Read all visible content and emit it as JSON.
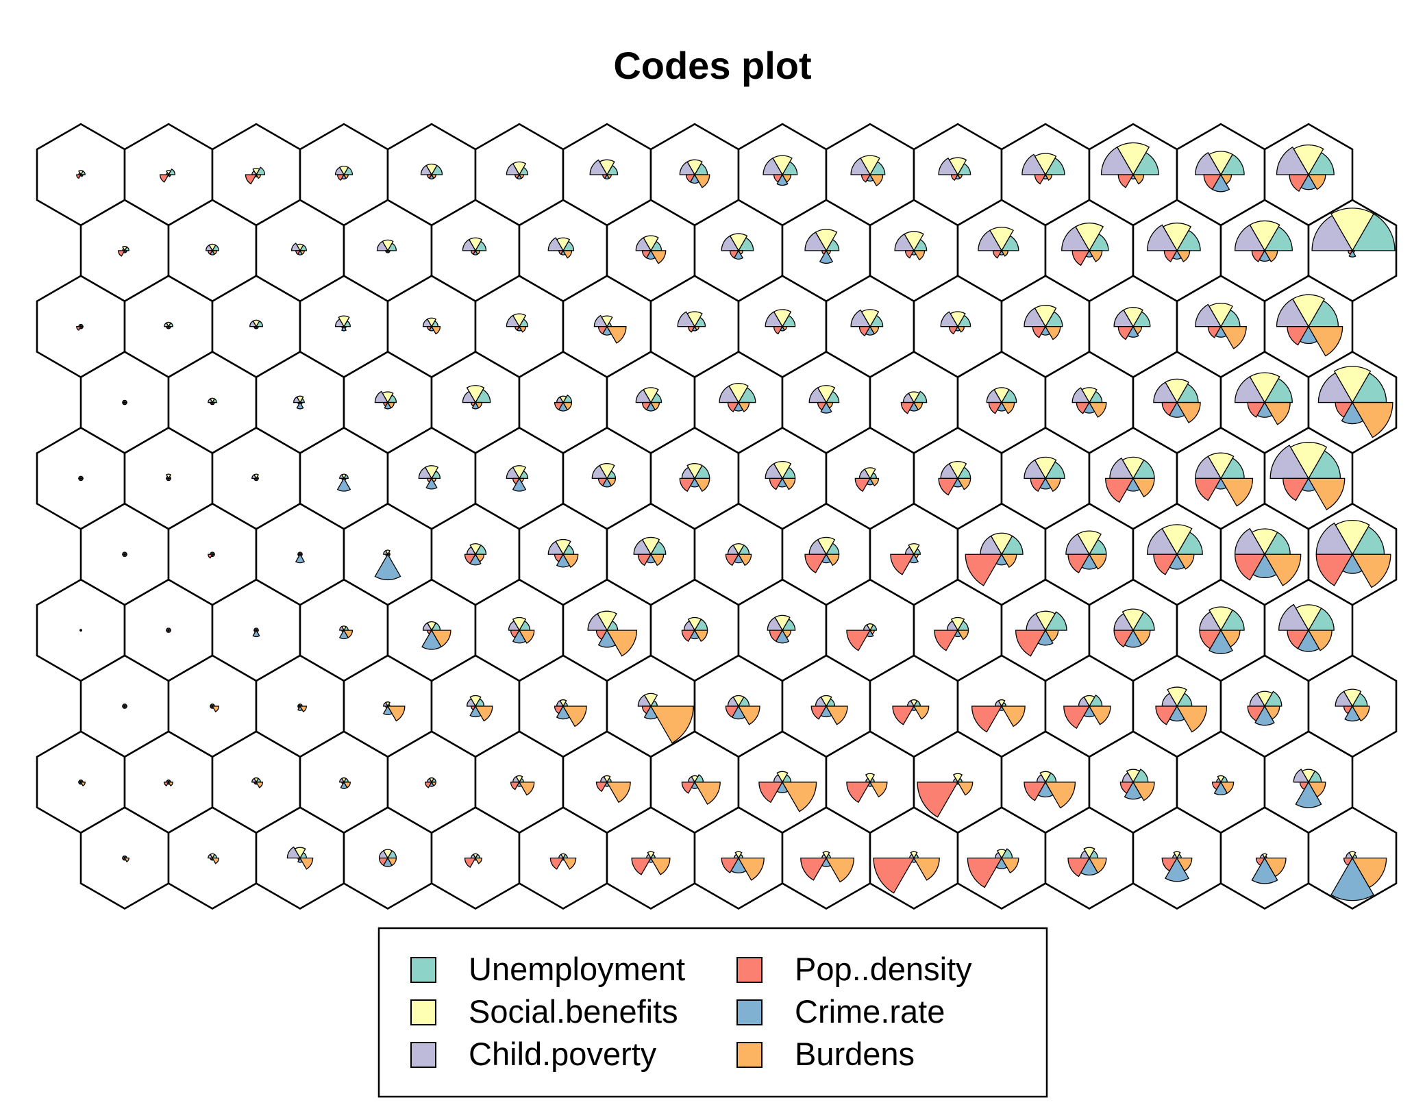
{
  "chart_data": {
    "type": "som-codes-fan",
    "title": "Codes plot",
    "grid": {
      "topology": "hexagonal",
      "rows": 10,
      "cols": 15
    },
    "variables": [
      "Unemployment",
      "Social.benefits",
      "Child.poverty",
      "Pop..density",
      "Crime.rate",
      "Burdens"
    ],
    "colors": [
      "#8dd3c7",
      "#ffffb3",
      "#bebada",
      "#fb8072",
      "#80b1d3",
      "#fdb462"
    ],
    "legend": {
      "position": "bottom",
      "entries": [
        {
          "label": "Unemployment",
          "color": "#8dd3c7"
        },
        {
          "label": "Social.benefits",
          "color": "#ffffb3"
        },
        {
          "label": "Child.poverty",
          "color": "#bebada"
        },
        {
          "label": "Pop..density",
          "color": "#fb8072"
        },
        {
          "label": "Crime.rate",
          "color": "#80b1d3"
        },
        {
          "label": "Burdens",
          "color": "#fdb462"
        }
      ]
    },
    "codes_note": "rows listed top to bottom; each cell = [Unemployment, Social.benefits, Child.poverty, Pop..density, Crime.rate, Burdens], relative scale 0-1",
    "codes": [
      [
        [
          0.1,
          0.1,
          0.05,
          0.1,
          0.03,
          0.05
        ],
        [
          0.15,
          0.1,
          0.05,
          0.2,
          0.03,
          0.05
        ],
        [
          0.2,
          0.15,
          0.1,
          0.25,
          0.05,
          0.1
        ],
        [
          0.2,
          0.2,
          0.2,
          0.15,
          0.1,
          0.1
        ],
        [
          0.25,
          0.25,
          0.25,
          0.1,
          0.1,
          0.1
        ],
        [
          0.2,
          0.3,
          0.3,
          0.1,
          0.1,
          0.1
        ],
        [
          0.25,
          0.35,
          0.4,
          0.1,
          0.1,
          0.1
        ],
        [
          0.3,
          0.35,
          0.35,
          0.2,
          0.2,
          0.35
        ],
        [
          0.35,
          0.45,
          0.45,
          0.2,
          0.25,
          0.2
        ],
        [
          0.35,
          0.45,
          0.45,
          0.2,
          0.15,
          0.3
        ],
        [
          0.3,
          0.4,
          0.45,
          0.15,
          0.1,
          0.1
        ],
        [
          0.45,
          0.5,
          0.55,
          0.25,
          0.1,
          0.15
        ],
        [
          0.6,
          0.75,
          0.75,
          0.35,
          0.1,
          0.25
        ],
        [
          0.55,
          0.55,
          0.6,
          0.4,
          0.4,
          0.25
        ],
        [
          0.6,
          0.7,
          0.75,
          0.45,
          0.35,
          0.4
        ]
      ],
      [
        [
          0.1,
          0.1,
          0.05,
          0.15,
          0.05,
          0.05
        ],
        [
          0.15,
          0.15,
          0.15,
          0.1,
          0.1,
          0.1
        ],
        [
          0.15,
          0.15,
          0.2,
          0.1,
          0.1,
          0.1
        ],
        [
          0.2,
          0.25,
          0.25,
          0.05,
          0.05,
          0.05
        ],
        [
          0.25,
          0.3,
          0.3,
          0.1,
          0.1,
          0.1
        ],
        [
          0.25,
          0.3,
          0.35,
          0.1,
          0.1,
          0.2
        ],
        [
          0.25,
          0.35,
          0.35,
          0.2,
          0.2,
          0.35
        ],
        [
          0.35,
          0.4,
          0.4,
          0.2,
          0.2,
          0.1
        ],
        [
          0.3,
          0.5,
          0.5,
          0.1,
          0.3,
          0.1
        ],
        [
          0.3,
          0.45,
          0.45,
          0.2,
          0.1,
          0.25
        ],
        [
          0.4,
          0.55,
          0.55,
          0.2,
          0.1,
          0.15
        ],
        [
          0.45,
          0.65,
          0.65,
          0.4,
          0.15,
          0.3
        ],
        [
          0.55,
          0.65,
          0.7,
          0.3,
          0.2,
          0.3
        ],
        [
          0.65,
          0.7,
          0.7,
          0.3,
          0.25,
          0.3
        ],
        [
          1.0,
          1.0,
          0.95,
          0.1,
          0.15,
          0.05
        ]
      ],
      [
        [
          0.05,
          0.05,
          0.05,
          0.1,
          0.05,
          0.05
        ],
        [
          0.1,
          0.1,
          0.1,
          0.05,
          0.05,
          0.05
        ],
        [
          0.15,
          0.15,
          0.15,
          0.05,
          0.05,
          0.05
        ],
        [
          0.15,
          0.25,
          0.2,
          0.05,
          0.1,
          0.05
        ],
        [
          0.15,
          0.2,
          0.2,
          0.1,
          0.1,
          0.2
        ],
        [
          0.2,
          0.3,
          0.3,
          0.1,
          0.1,
          0.15
        ],
        [
          0.1,
          0.25,
          0.3,
          0.2,
          0.2,
          0.45
        ],
        [
          0.25,
          0.35,
          0.4,
          0.15,
          0.1,
          0.1
        ],
        [
          0.3,
          0.4,
          0.4,
          0.2,
          0.1,
          0.1
        ],
        [
          0.3,
          0.4,
          0.45,
          0.25,
          0.2,
          0.2
        ],
        [
          0.3,
          0.35,
          0.4,
          0.2,
          0.1,
          0.15
        ],
        [
          0.4,
          0.5,
          0.5,
          0.3,
          0.2,
          0.35
        ],
        [
          0.4,
          0.45,
          0.45,
          0.35,
          0.25,
          0.2
        ],
        [
          0.45,
          0.55,
          0.6,
          0.3,
          0.25,
          0.6
        ],
        [
          0.7,
          0.75,
          0.75,
          0.5,
          0.4,
          0.8
        ]
      ],
      [
        [
          0.05,
          0.05,
          0.05,
          0.05,
          0.05,
          0.05
        ],
        [
          0.1,
          0.1,
          0.1,
          0.05,
          0.05,
          0.05
        ],
        [
          0.1,
          0.15,
          0.15,
          0.05,
          0.15,
          0.05
        ],
        [
          0.2,
          0.25,
          0.3,
          0.1,
          0.15,
          0.15
        ],
        [
          0.35,
          0.4,
          0.3,
          0.1,
          0.15,
          0.15
        ],
        [
          0.2,
          0.15,
          0.15,
          0.2,
          0.2,
          0.2
        ],
        [
          0.25,
          0.35,
          0.35,
          0.2,
          0.2,
          0.2
        ],
        [
          0.4,
          0.45,
          0.45,
          0.25,
          0.2,
          0.25
        ],
        [
          0.3,
          0.4,
          0.4,
          0.2,
          0.25,
          0.15
        ],
        [
          0.3,
          0.25,
          0.25,
          0.3,
          0.2,
          0.2
        ],
        [
          0.35,
          0.35,
          0.35,
          0.3,
          0.2,
          0.3
        ],
        [
          0.3,
          0.35,
          0.4,
          0.3,
          0.25,
          0.4
        ],
        [
          0.5,
          0.55,
          0.55,
          0.35,
          0.35,
          0.55
        ],
        [
          0.65,
          0.7,
          0.7,
          0.4,
          0.35,
          0.6
        ],
        [
          0.8,
          0.85,
          0.8,
          0.4,
          0.5,
          0.95
        ]
      ],
      [
        [
          0.05,
          0.05,
          0.05,
          0.05,
          0.05,
          0.05
        ],
        [
          0.05,
          0.1,
          0.05,
          0.05,
          0.05,
          0.05
        ],
        [
          0.05,
          0.1,
          0.1,
          0.05,
          0.05,
          0.05
        ],
        [
          0.1,
          0.1,
          0.1,
          0.05,
          0.3,
          0.05
        ],
        [
          0.2,
          0.3,
          0.3,
          0.1,
          0.25,
          0.1
        ],
        [
          0.2,
          0.3,
          0.3,
          0.15,
          0.3,
          0.1
        ],
        [
          0.2,
          0.35,
          0.35,
          0.2,
          0.2,
          0.2
        ],
        [
          0.35,
          0.35,
          0.3,
          0.35,
          0.2,
          0.35
        ],
        [
          0.3,
          0.4,
          0.4,
          0.3,
          0.2,
          0.3
        ],
        [
          0.15,
          0.25,
          0.25,
          0.35,
          0.15,
          0.2
        ],
        [
          0.3,
          0.4,
          0.4,
          0.45,
          0.2,
          0.3
        ],
        [
          0.45,
          0.5,
          0.5,
          0.35,
          0.25,
          0.35
        ],
        [
          0.5,
          0.5,
          0.55,
          0.65,
          0.3,
          0.5
        ],
        [
          0.55,
          0.6,
          0.6,
          0.6,
          0.25,
          0.75
        ],
        [
          0.75,
          0.85,
          0.9,
          0.6,
          0.3,
          0.85
        ]
      ],
      [
        [
          0.05,
          0.05,
          0.05,
          0.05,
          0.05,
          0.05
        ],
        [
          0.05,
          0.05,
          0.05,
          0.1,
          0.05,
          0.05
        ],
        [
          0.05,
          0.05,
          0.05,
          0.05,
          0.2,
          0.05
        ],
        [
          0.05,
          0.1,
          0.1,
          0.05,
          0.6,
          0.05
        ],
        [
          0.25,
          0.25,
          0.2,
          0.25,
          0.25,
          0.2
        ],
        [
          0.25,
          0.35,
          0.35,
          0.2,
          0.3,
          0.35
        ],
        [
          0.35,
          0.4,
          0.4,
          0.3,
          0.2,
          0.3
        ],
        [
          0.25,
          0.25,
          0.25,
          0.3,
          0.2,
          0.3
        ],
        [
          0.3,
          0.4,
          0.4,
          0.5,
          0.2,
          0.3
        ],
        [
          0.15,
          0.25,
          0.2,
          0.55,
          0.2,
          0.1
        ],
        [
          0.5,
          0.5,
          0.5,
          0.85,
          0.25,
          0.35
        ],
        [
          0.4,
          0.55,
          0.55,
          0.5,
          0.35,
          0.4
        ],
        [
          0.6,
          0.7,
          0.7,
          0.55,
          0.35,
          0.4
        ],
        [
          0.6,
          0.6,
          0.7,
          0.7,
          0.55,
          0.85
        ],
        [
          0.75,
          0.8,
          0.85,
          0.85,
          0.45,
          0.9
        ]
      ],
      [
        [
          0.02,
          0.02,
          0.02,
          0.02,
          0.02,
          0.02
        ],
        [
          0.05,
          0.05,
          0.05,
          0.05,
          0.05,
          0.05
        ],
        [
          0.05,
          0.05,
          0.05,
          0.05,
          0.15,
          0.05
        ],
        [
          0.1,
          0.1,
          0.1,
          0.05,
          0.2,
          0.2
        ],
        [
          0.2,
          0.2,
          0.2,
          0.1,
          0.45,
          0.45
        ],
        [
          0.25,
          0.3,
          0.25,
          0.2,
          0.3,
          0.35
        ],
        [
          0.25,
          0.45,
          0.45,
          0.25,
          0.4,
          0.7
        ],
        [
          0.3,
          0.3,
          0.25,
          0.3,
          0.2,
          0.3
        ],
        [
          0.3,
          0.35,
          0.35,
          0.3,
          0.3,
          0.2
        ],
        [
          0.15,
          0.15,
          0.15,
          0.55,
          0.15,
          0.1
        ],
        [
          0.25,
          0.3,
          0.25,
          0.55,
          0.15,
          0.25
        ],
        [
          0.5,
          0.45,
          0.45,
          0.7,
          0.35,
          0.3
        ],
        [
          0.5,
          0.5,
          0.45,
          0.45,
          0.4,
          0.4
        ],
        [
          0.55,
          0.55,
          0.5,
          0.5,
          0.55,
          0.45
        ],
        [
          0.6,
          0.6,
          0.7,
          0.5,
          0.5,
          0.55
        ]
      ],
      [
        [
          0.05,
          0.05,
          0.05,
          0.05,
          0.05,
          0.05
        ],
        [
          0.05,
          0.05,
          0.05,
          0.05,
          0.05,
          0.15
        ],
        [
          0.05,
          0.05,
          0.05,
          0.05,
          0.1,
          0.15
        ],
        [
          0.05,
          0.1,
          0.1,
          0.05,
          0.2,
          0.4
        ],
        [
          0.2,
          0.25,
          0.2,
          0.1,
          0.25,
          0.4
        ],
        [
          0.1,
          0.15,
          0.15,
          0.2,
          0.3,
          0.55
        ],
        [
          0.15,
          0.3,
          0.3,
          0.2,
          0.3,
          1.0
        ],
        [
          0.25,
          0.25,
          0.25,
          0.3,
          0.3,
          0.5
        ],
        [
          0.2,
          0.25,
          0.25,
          0.35,
          0.25,
          0.5
        ],
        [
          0.15,
          0.15,
          0.15,
          0.5,
          0.1,
          0.35
        ],
        [
          0.1,
          0.15,
          0.15,
          0.7,
          0.1,
          0.55
        ],
        [
          0.3,
          0.25,
          0.25,
          0.6,
          0.25,
          0.5
        ],
        [
          0.35,
          0.45,
          0.35,
          0.5,
          0.35,
          0.7
        ],
        [
          0.4,
          0.35,
          0.35,
          0.4,
          0.45,
          0.35
        ],
        [
          0.35,
          0.4,
          0.4,
          0.2,
          0.35,
          0.4
        ]
      ],
      [
        [
          0.05,
          0.05,
          0.05,
          0.05,
          0.05,
          0.1
        ],
        [
          0.05,
          0.05,
          0.05,
          0.1,
          0.05,
          0.1
        ],
        [
          0.1,
          0.1,
          0.1,
          0.05,
          0.05,
          0.15
        ],
        [
          0.1,
          0.1,
          0.1,
          0.05,
          0.15,
          0.15
        ],
        [
          0.1,
          0.1,
          0.1,
          0.15,
          0.1,
          0.1
        ],
        [
          0.1,
          0.15,
          0.15,
          0.2,
          0.1,
          0.35
        ],
        [
          0.1,
          0.15,
          0.15,
          0.25,
          0.1,
          0.55
        ],
        [
          0.2,
          0.15,
          0.15,
          0.3,
          0.15,
          0.6
        ],
        [
          0.2,
          0.25,
          0.2,
          0.55,
          0.25,
          0.8
        ],
        [
          0.1,
          0.2,
          0.1,
          0.55,
          0.1,
          0.4
        ],
        [
          0.1,
          0.2,
          0.1,
          0.95,
          0.05,
          0.35
        ],
        [
          0.25,
          0.25,
          0.2,
          0.5,
          0.35,
          0.7
        ],
        [
          0.35,
          0.3,
          0.25,
          0.3,
          0.4,
          0.5
        ],
        [
          0.15,
          0.15,
          0.1,
          0.2,
          0.3,
          0.3
        ],
        [
          0.3,
          0.3,
          0.35,
          0.2,
          0.6,
          0.4
        ]
      ],
      [
        [
          0.05,
          0.05,
          0.05,
          0.05,
          0.05,
          0.1
        ],
        [
          0.1,
          0.1,
          0.1,
          0.05,
          0.05,
          0.15
        ],
        [
          0.15,
          0.25,
          0.3,
          0.05,
          0.1,
          0.3
        ],
        [
          0.2,
          0.2,
          0.2,
          0.2,
          0.2,
          0.2
        ],
        [
          0.1,
          0.1,
          0.1,
          0.25,
          0.05,
          0.15
        ],
        [
          0.1,
          0.1,
          0.1,
          0.3,
          0.05,
          0.3
        ],
        [
          0.1,
          0.15,
          0.1,
          0.45,
          0.1,
          0.45
        ],
        [
          0.1,
          0.15,
          0.1,
          0.4,
          0.35,
          0.6
        ],
        [
          0.1,
          0.15,
          0.1,
          0.6,
          0.2,
          0.65
        ],
        [
          0.1,
          0.15,
          0.1,
          0.95,
          0.1,
          0.6
        ],
        [
          0.25,
          0.2,
          0.15,
          0.8,
          0.25,
          0.4
        ],
        [
          0.2,
          0.25,
          0.2,
          0.5,
          0.4,
          0.4
        ],
        [
          0.1,
          0.15,
          0.1,
          0.35,
          0.55,
          0.35
        ],
        [
          0.05,
          0.1,
          0.1,
          0.2,
          0.6,
          0.5
        ],
        [
          0.1,
          0.15,
          0.15,
          0.2,
          1.0,
          0.8
        ]
      ]
    ]
  }
}
